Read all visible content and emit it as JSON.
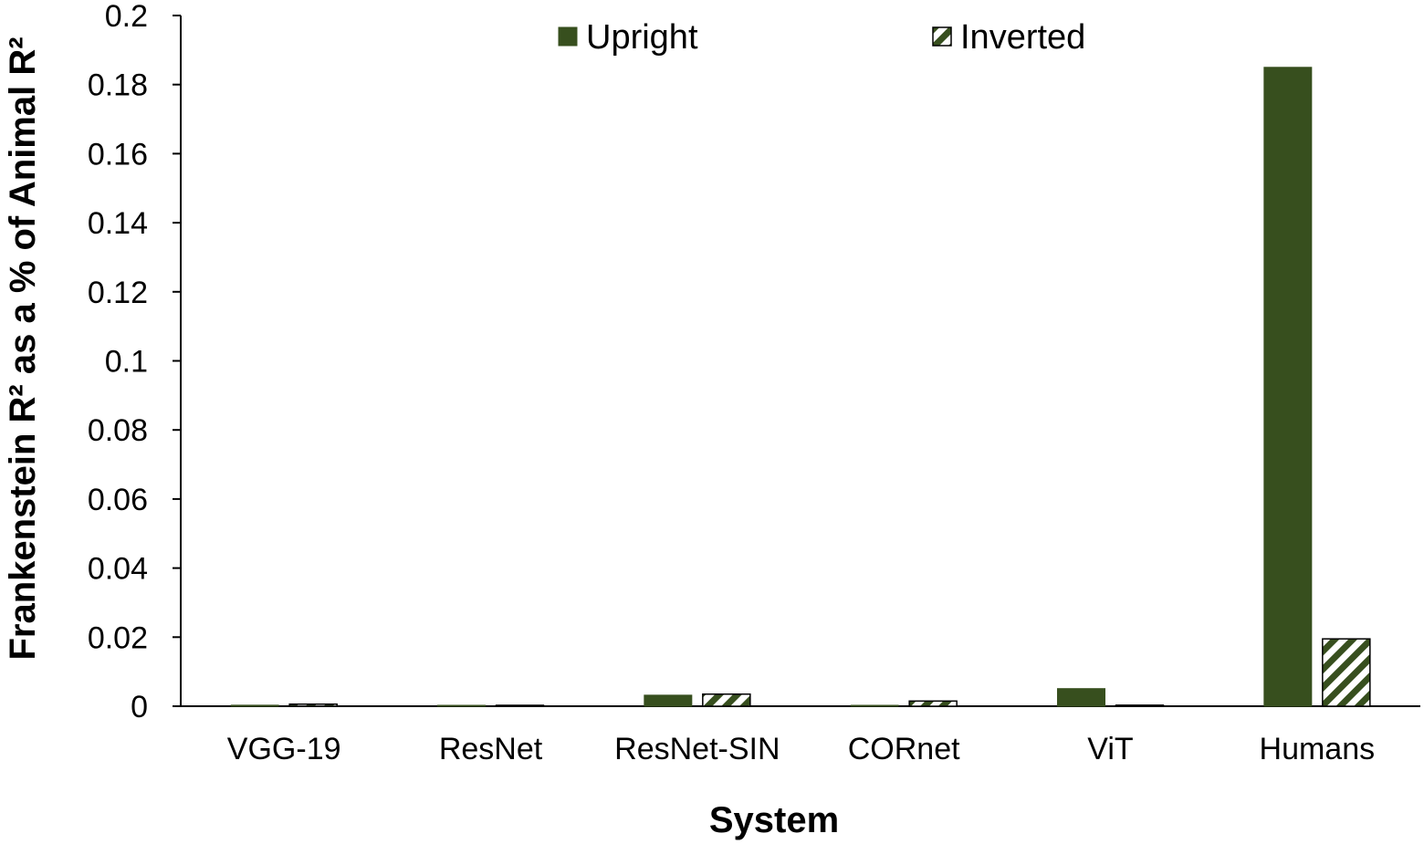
{
  "chart_data": {
    "type": "bar",
    "categories": [
      "VGG-19",
      "ResNet",
      "ResNet-SIN",
      "CORnet",
      "ViT",
      "Humans"
    ],
    "series": [
      {
        "name": "Upright",
        "values": [
          0.0003,
          0.0,
          0.0032,
          0.0,
          0.0051,
          0.185
        ],
        "color": "#374f1e",
        "pattern": "solid"
      },
      {
        "name": "Inverted",
        "values": [
          0.0006,
          0.0002,
          0.0035,
          0.0015,
          0.0003,
          0.0195
        ],
        "color": "#374f1e",
        "pattern": "diagonal-stripes"
      }
    ],
    "title": "",
    "xlabel": "System",
    "ylabel": "Frankenstein R² as a % of Animal R²",
    "ylim": [
      0,
      0.2
    ],
    "yticks": [
      "0",
      "0.02",
      "0.04",
      "0.06",
      "0.08",
      "0.1",
      "0.12",
      "0.14",
      "0.16",
      "0.18",
      "0.2"
    ],
    "grid": false,
    "legend_position": "top-center"
  }
}
